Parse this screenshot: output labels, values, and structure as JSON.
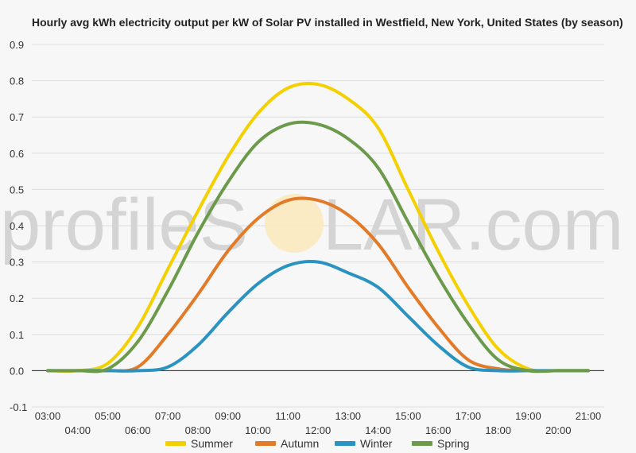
{
  "chart_data": {
    "type": "line",
    "title": "Hourly avg kWh electricity output per kW of Solar PV installed in Westfield, New York, United States (by season)",
    "watermark": {
      "pre": "profileS",
      "post": "LAR.com"
    },
    "x": [
      "03:00",
      "04:00",
      "05:00",
      "06:00",
      "07:00",
      "08:00",
      "09:00",
      "10:00",
      "11:00",
      "12:00",
      "13:00",
      "14:00",
      "15:00",
      "16:00",
      "17:00",
      "18:00",
      "19:00",
      "20:00",
      "21:00"
    ],
    "ylim": [
      -0.1,
      0.9
    ],
    "yticks": [
      "0.9",
      "0.8",
      "0.7",
      "0.6",
      "0.5",
      "0.4",
      "0.3",
      "0.2",
      "0.1",
      "0.0",
      "-0.1"
    ],
    "grid": true,
    "legend_position": "bottom",
    "series": [
      {
        "name": "Summer",
        "color": "#f5d000",
        "values": [
          0,
          0,
          0.02,
          0.12,
          0.28,
          0.44,
          0.59,
          0.71,
          0.78,
          0.79,
          0.75,
          0.67,
          0.5,
          0.33,
          0.18,
          0.06,
          0.005,
          0,
          0
        ]
      },
      {
        "name": "Autumn",
        "color": "#e37a27",
        "values": [
          0,
          0,
          0,
          0.01,
          0.1,
          0.21,
          0.33,
          0.42,
          0.47,
          0.47,
          0.43,
          0.35,
          0.23,
          0.12,
          0.03,
          0.005,
          0,
          0,
          0
        ]
      },
      {
        "name": "Winter",
        "color": "#2a93c2",
        "values": [
          0,
          0,
          0,
          0,
          0.01,
          0.07,
          0.16,
          0.24,
          0.29,
          0.3,
          0.27,
          0.23,
          0.15,
          0.07,
          0.01,
          0,
          0,
          0,
          0
        ]
      },
      {
        "name": "Spring",
        "color": "#6a9a4a",
        "values": [
          0,
          0,
          0.005,
          0.08,
          0.22,
          0.38,
          0.52,
          0.63,
          0.68,
          0.68,
          0.64,
          0.56,
          0.41,
          0.26,
          0.13,
          0.03,
          0,
          0,
          0
        ]
      }
    ]
  }
}
